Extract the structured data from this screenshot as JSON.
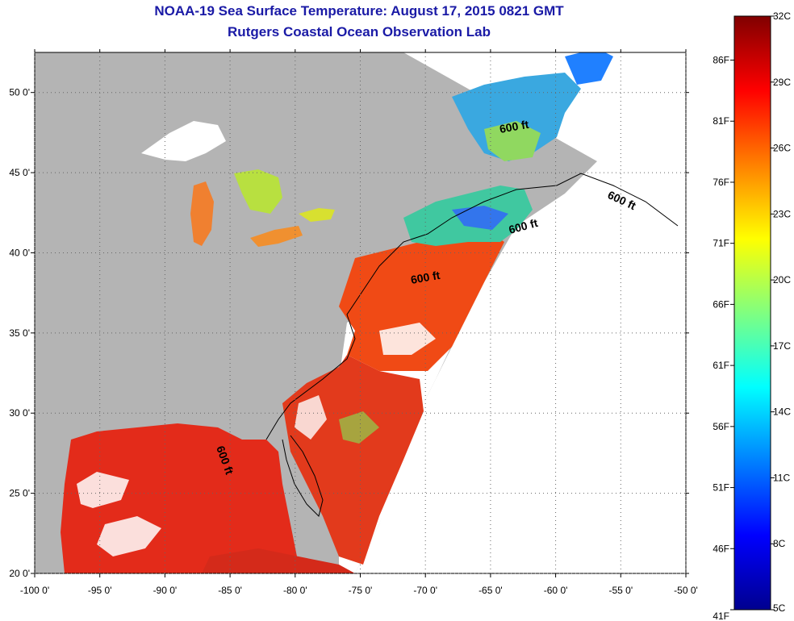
{
  "title": {
    "line1": "NOAA-19 Sea Surface Temperature:  August 17, 2015 0821 GMT",
    "line2": "Rutgers Coastal Ocean Observation Lab"
  },
  "map": {
    "lon_range": [
      -100,
      -50
    ],
    "lat_range": [
      20,
      52.5
    ],
    "x_ticks": [
      "-100 0'",
      "-95 0'",
      "-90 0'",
      "-85 0'",
      "-80 0'",
      "-75 0'",
      "-70 0'",
      "-65 0'",
      "-60 0'",
      "-55 0'",
      "-50 0'"
    ],
    "y_ticks": [
      "50 0'",
      "45 0'",
      "40 0'",
      "35 0'",
      "30 0'",
      "25 0'",
      "20 0'"
    ],
    "grid": "dotted",
    "land_color": "#b4b4b4",
    "cloud_color": "#ffffff",
    "contour_labels": [
      "600 ft",
      "600 ft",
      "600 ft",
      "600 ft",
      "600 ft"
    ]
  },
  "colorbar": {
    "colors": [
      "#00008f",
      "#0000ff",
      "#0080ff",
      "#00ffff",
      "#80ff80",
      "#ffff00",
      "#ff8000",
      "#ff0000",
      "#800000"
    ],
    "celsius_labels": [
      "32C",
      "29C",
      "26C",
      "23C",
      "20C",
      "17C",
      "14C",
      "11C",
      "8C",
      "5C"
    ],
    "fahrenheit_labels": [
      "86F",
      "81F",
      "76F",
      "71F",
      "66F",
      "61F",
      "56F",
      "51F",
      "46F",
      "41F"
    ]
  }
}
